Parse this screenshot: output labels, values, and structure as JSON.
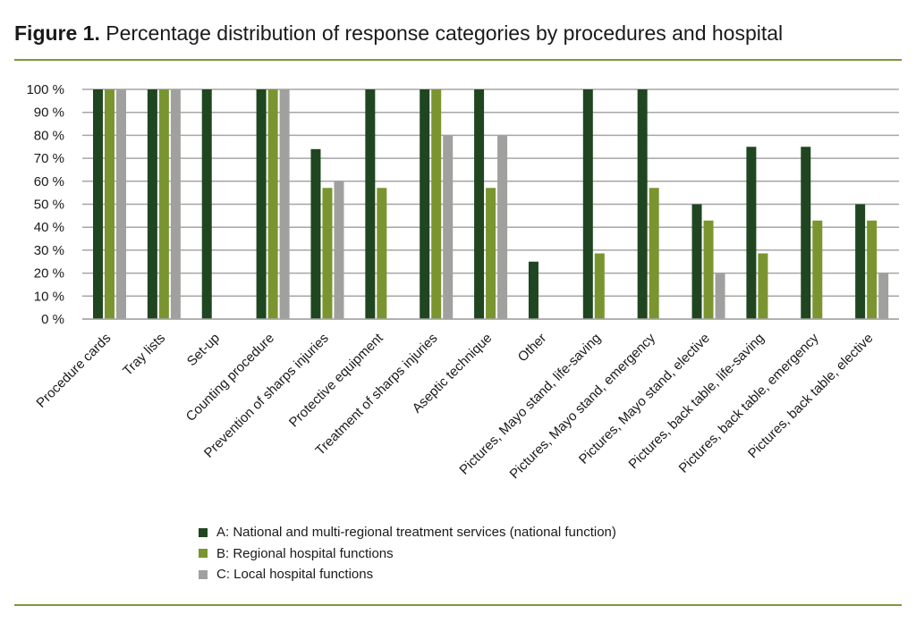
{
  "chart_data": {
    "type": "bar",
    "title_bold": "Figure 1.",
    "title": "Percentage distribution of response categories by procedures and hospital",
    "xlabel": "",
    "ylabel": "",
    "ylim": [
      0,
      100
    ],
    "yticks": [
      "0 %",
      "10 %",
      "20 %",
      "30 %",
      "40 %",
      "50 %",
      "60 %",
      "70 %",
      "80 %",
      "90 %",
      "100 %"
    ],
    "grid": true,
    "legend_position": "bottom",
    "categories": [
      "Procedure cards",
      "Tray lists",
      "Set-up",
      "Counting procedure",
      "Prevention of sharps injuries",
      "Protective equipment",
      "Treatment of sharps injuries",
      "Aseptic technique",
      "Other",
      "Pictures, Mayo stand, life-saving",
      "Pictures, Mayo stand, emergency",
      "Pictures, Mayo stand, elective",
      "Pictures, back table, life-saving",
      "Pictures, back table, emergency",
      "Pictures, back table, elective"
    ],
    "series": [
      {
        "name": "A: National and multi-regional treatment services (national function)",
        "color": "#1f4620",
        "values": [
          100,
          100,
          100,
          100,
          74,
          100,
          100,
          100,
          25,
          100,
          100,
          50,
          75,
          75,
          50
        ]
      },
      {
        "name": "B: Regional hospital functions",
        "color": "#7a9530",
        "values": [
          100,
          100,
          0,
          100,
          57.1,
          57.1,
          100,
          57.1,
          0,
          28.6,
          57.1,
          42.9,
          28.6,
          42.9,
          42.9
        ]
      },
      {
        "name": "C: Local hospital functions",
        "color": "#a0a09e",
        "values": [
          100,
          100,
          0,
          100,
          60,
          0,
          80,
          80,
          0,
          0,
          0,
          20,
          0,
          0,
          20
        ]
      }
    ]
  }
}
